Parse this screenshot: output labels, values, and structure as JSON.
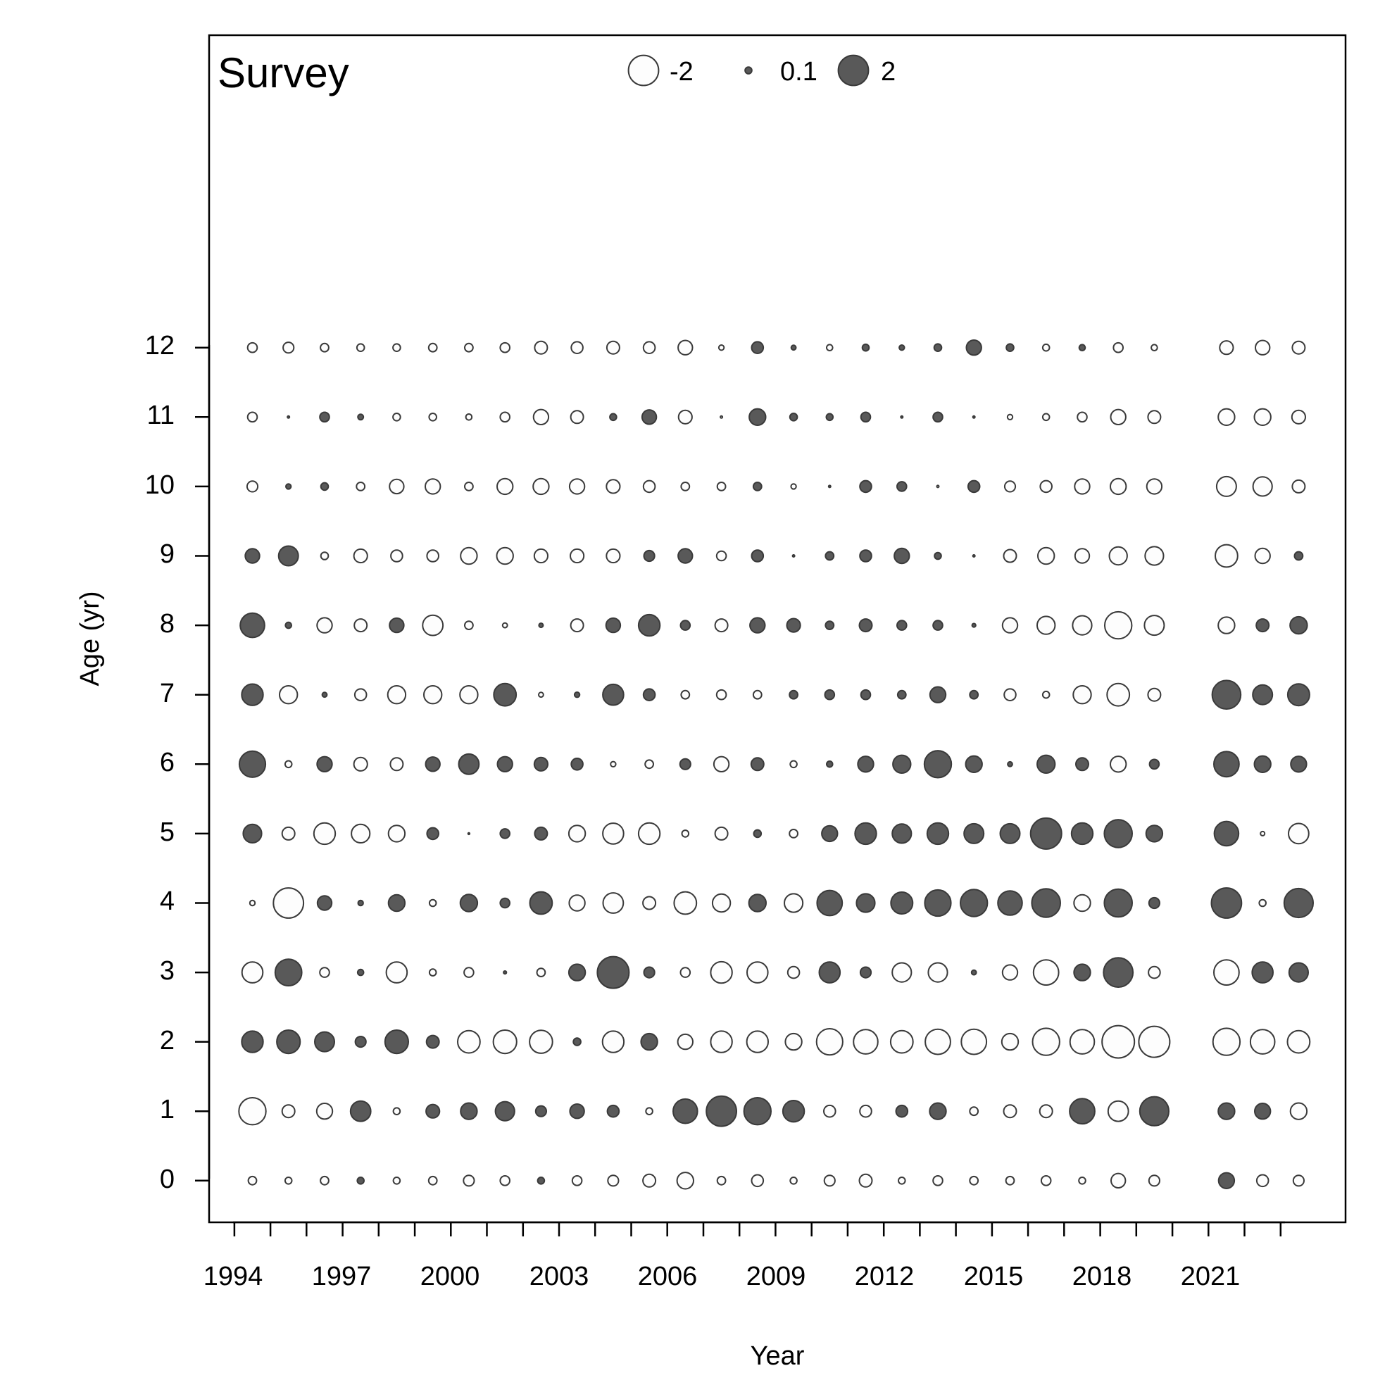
{
  "chart_data": {
    "type": "bubble",
    "title": "Survey",
    "xlabel": "Year",
    "ylabel": "Age (yr)",
    "x_tick_labels": [
      "1994",
      "1997",
      "2000",
      "2003",
      "2006",
      "2009",
      "2012",
      "2015",
      "2018",
      "2021"
    ],
    "y_tick_labels": [
      "0",
      "1",
      "2",
      "3",
      "4",
      "5",
      "6",
      "7",
      "8",
      "9",
      "10",
      "11",
      "12"
    ],
    "xlim": [
      1993.3,
      2024.8
    ],
    "ylim": [
      -0.6,
      16.5
    ],
    "legend": {
      "placement": "top-center",
      "entries": [
        {
          "label": "-2",
          "value": -2
        },
        {
          "label": "0.1",
          "value": 0.1
        },
        {
          "label": "2",
          "value": 2
        }
      ]
    },
    "colors": {
      "positive": "#595959",
      "negative": "#fdfdfd",
      "stroke": "#3a3a3a"
    },
    "max_abs": 2.3,
    "years": [
      1994.5,
      1995.5,
      1996.5,
      1997.5,
      1998.5,
      1999.5,
      2000.5,
      2001.5,
      2002.5,
      2003.5,
      2004.5,
      2005.5,
      2006.5,
      2007.5,
      2008.5,
      2009.5,
      2010.5,
      2011.5,
      2012.5,
      2013.5,
      2014.5,
      2015.5,
      2016.5,
      2017.5,
      2018.5,
      2019.5,
      2021.5,
      2022.5,
      2023.5
    ],
    "ages": [
      0,
      1,
      2,
      3,
      4,
      5,
      6,
      7,
      8,
      9,
      10,
      11,
      12
    ],
    "residuals": [
      [
        -0.15,
        -0.1,
        -0.15,
        0.1,
        -0.1,
        -0.15,
        -0.25,
        -0.2,
        0.1,
        -0.2,
        -0.25,
        -0.35,
        -0.6,
        -0.15,
        -0.3,
        -0.1,
        -0.25,
        -0.35,
        -0.1,
        -0.2,
        -0.15,
        -0.15,
        -0.2,
        -0.1,
        -0.45,
        -0.25,
        0.55,
        -0.3,
        -0.25
      ],
      [
        -1.6,
        -0.35,
        -0.55,
        0.9,
        -0.1,
        0.4,
        0.6,
        0.8,
        0.25,
        0.45,
        0.3,
        -0.1,
        1.3,
        2.0,
        1.6,
        1.0,
        -0.3,
        -0.3,
        0.3,
        0.6,
        -0.15,
        -0.35,
        -0.35,
        1.4,
        -0.9,
        1.85,
        0.6,
        0.55,
        -0.6
      ],
      [
        1.0,
        1.2,
        0.85,
        0.25,
        1.2,
        0.35,
        -1.1,
        -1.2,
        -1.15,
        0.12,
        -1.0,
        0.6,
        -0.5,
        -1.0,
        -1.0,
        -0.6,
        -1.5,
        -1.3,
        -1.1,
        -1.4,
        -1.4,
        -0.6,
        -1.6,
        -1.3,
        -2.3,
        -2.1,
        -1.6,
        -1.3,
        -1.1
      ],
      [
        -0.95,
        1.55,
        -0.2,
        0.08,
        -0.95,
        -0.1,
        -0.2,
        0.02,
        -0.15,
        0.6,
        2.2,
        0.25,
        -0.2,
        -1.0,
        -0.95,
        -0.3,
        0.95,
        0.25,
        -0.8,
        -0.8,
        0.05,
        -0.5,
        -1.4,
        0.6,
        1.9,
        -0.3,
        -1.4,
        0.95,
        0.8
      ],
      [
        -0.06,
        -2.0,
        0.45,
        0.06,
        0.6,
        -0.1,
        0.65,
        0.2,
        1.1,
        -0.55,
        -0.9,
        -0.35,
        -1.1,
        -0.7,
        0.65,
        -0.75,
        1.4,
        0.75,
        1.05,
        1.5,
        1.6,
        1.3,
        1.8,
        -0.6,
        1.7,
        0.25,
        2.0,
        -0.1,
        1.85
      ],
      [
        0.75,
        -0.35,
        -1.0,
        -0.75,
        -0.6,
        0.3,
        0.0,
        0.2,
        0.35,
        -0.6,
        -0.95,
        -1.0,
        -0.1,
        -0.35,
        0.12,
        -0.15,
        0.55,
        1.0,
        0.8,
        1.0,
        0.85,
        0.85,
        2.1,
        1.0,
        1.7,
        0.6,
        1.3,
        -0.04,
        -0.9
      ],
      [
        1.5,
        -0.1,
        0.5,
        -0.4,
        -0.35,
        0.45,
        0.9,
        0.5,
        0.4,
        0.3,
        -0.06,
        -0.15,
        0.25,
        -0.5,
        0.35,
        -0.1,
        0.08,
        0.55,
        0.7,
        1.6,
        0.6,
        0.05,
        0.7,
        0.35,
        -0.55,
        0.2,
        1.4,
        0.6,
        0.55
      ],
      [
        1.0,
        -0.7,
        0.05,
        -0.3,
        -0.7,
        -0.7,
        -0.7,
        1.1,
        -0.05,
        0.06,
        0.95,
        0.3,
        -0.15,
        -0.2,
        -0.15,
        0.15,
        0.2,
        0.2,
        0.15,
        0.55,
        0.15,
        -0.3,
        -0.1,
        -0.7,
        -1.1,
        -0.35,
        1.8,
        0.85,
        1.05
      ],
      [
        1.3,
        0.08,
        -0.5,
        -0.35,
        0.45,
        -0.9,
        -0.15,
        -0.05,
        0.04,
        -0.35,
        0.45,
        1.0,
        0.2,
        -0.35,
        0.5,
        0.4,
        0.15,
        0.35,
        0.2,
        0.2,
        0.03,
        -0.5,
        -0.7,
        -0.8,
        -1.6,
        -0.85,
        -0.6,
        0.35,
        0.65
      ],
      [
        0.45,
        0.85,
        -0.12,
        -0.4,
        -0.3,
        -0.3,
        -0.6,
        -0.6,
        -0.4,
        -0.4,
        -0.4,
        0.25,
        0.45,
        -0.2,
        0.3,
        0.01,
        0.15,
        0.3,
        0.5,
        0.1,
        0.01,
        -0.35,
        -0.6,
        -0.45,
        -0.7,
        -0.75,
        -1.1,
        -0.5,
        0.15
      ],
      [
        -0.25,
        0.06,
        0.12,
        -0.15,
        -0.45,
        -0.5,
        -0.15,
        -0.55,
        -0.55,
        -0.5,
        -0.4,
        -0.3,
        -0.15,
        -0.15,
        0.15,
        -0.06,
        0.01,
        0.3,
        0.2,
        -0.01,
        0.3,
        -0.25,
        -0.3,
        -0.5,
        -0.55,
        -0.5,
        -0.85,
        -0.8,
        -0.35
      ],
      [
        -0.2,
        0.01,
        0.2,
        0.07,
        -0.12,
        -0.12,
        -0.08,
        -0.2,
        -0.5,
        -0.35,
        0.1,
        0.45,
        -0.4,
        -0.01,
        0.6,
        0.12,
        0.1,
        0.2,
        0.01,
        0.2,
        0.01,
        -0.06,
        -0.1,
        -0.2,
        -0.5,
        -0.35,
        -0.6,
        -0.6,
        -0.4
      ],
      [
        -0.2,
        -0.25,
        -0.15,
        -0.12,
        -0.12,
        -0.15,
        -0.15,
        -0.2,
        -0.35,
        -0.3,
        -0.35,
        -0.3,
        -0.45,
        -0.06,
        0.3,
        0.05,
        -0.08,
        0.1,
        0.06,
        0.12,
        0.5,
        0.12,
        -0.1,
        0.08,
        -0.2,
        -0.08,
        -0.4,
        -0.45,
        -0.35
      ]
    ]
  }
}
